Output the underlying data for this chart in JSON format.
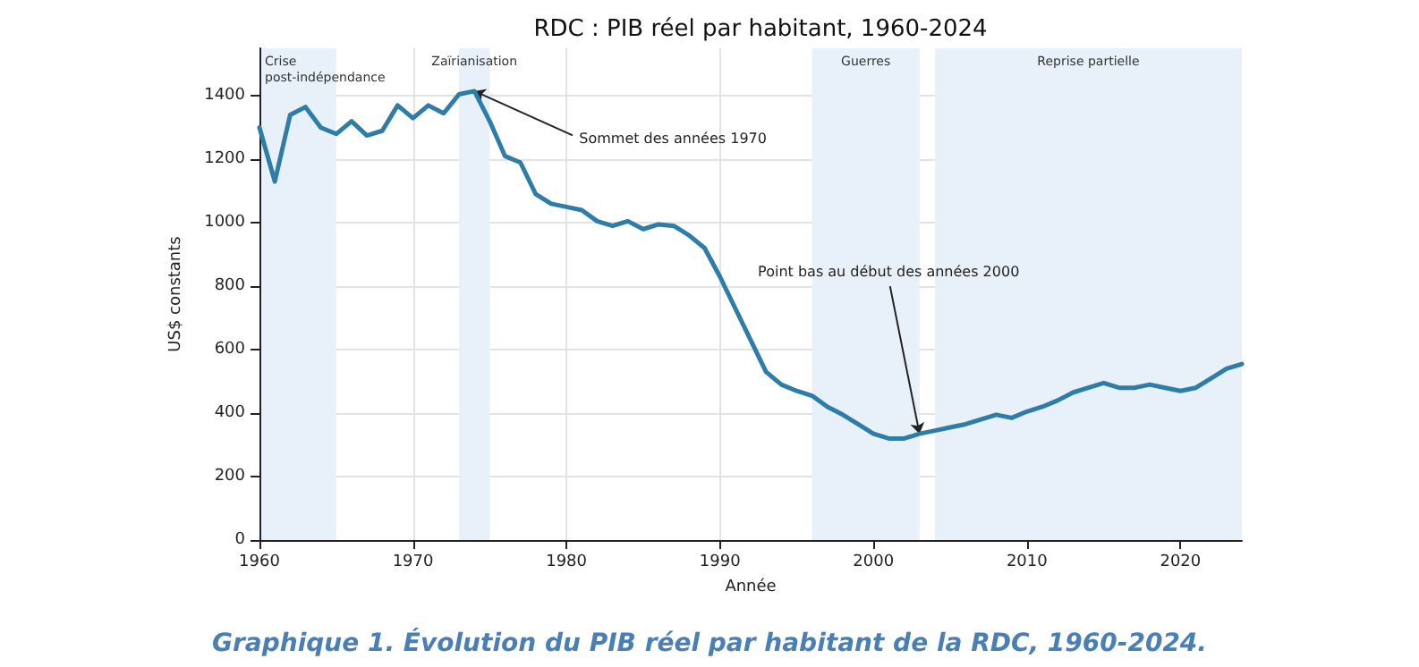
{
  "chart_data": {
    "type": "line",
    "title": "RDC : PIB réel par habitant, 1960-2024",
    "xlabel": "Année",
    "ylabel": "US$ constants",
    "x": [
      1960,
      1961,
      1962,
      1963,
      1964,
      1965,
      1966,
      1967,
      1968,
      1969,
      1970,
      1971,
      1972,
      1973,
      1974,
      1975,
      1976,
      1977,
      1978,
      1979,
      1980,
      1981,
      1982,
      1983,
      1984,
      1985,
      1986,
      1987,
      1988,
      1989,
      1990,
      1991,
      1992,
      1993,
      1994,
      1995,
      1996,
      1997,
      1998,
      1999,
      2000,
      2001,
      2002,
      2003,
      2004,
      2005,
      2006,
      2007,
      2008,
      2009,
      2010,
      2011,
      2012,
      2013,
      2014,
      2015,
      2016,
      2017,
      2018,
      2019,
      2020,
      2021,
      2022,
      2023,
      2024
    ],
    "series": [
      {
        "color": "#2e7ca8",
        "values": [
          1300,
          1130,
          1340,
          1365,
          1300,
          1280,
          1320,
          1275,
          1290,
          1370,
          1330,
          1370,
          1345,
          1405,
          1415,
          1320,
          1210,
          1190,
          1090,
          1060,
          1050,
          1040,
          1005,
          990,
          1005,
          980,
          995,
          990,
          960,
          920,
          830,
          730,
          630,
          530,
          490,
          470,
          455,
          420,
          395,
          365,
          335,
          320,
          320,
          335,
          345,
          355,
          365,
          380,
          395,
          385,
          405,
          420,
          440,
          465,
          480,
          495,
          480,
          480,
          490,
          480,
          470,
          480,
          510,
          540,
          555
        ]
      }
    ],
    "xlim": [
      1960,
      2024
    ],
    "ylim": [
      0,
      1550
    ],
    "xticks": [
      1960,
      1970,
      1980,
      1990,
      2000,
      2010,
      2020
    ],
    "yticks": [
      0,
      200,
      400,
      600,
      800,
      1000,
      1200,
      1400
    ],
    "grid": true,
    "marker": "none",
    "line_style": "solid",
    "bands": [
      {
        "axis": "x",
        "from": 1960,
        "to": 1965,
        "label": "Crise post-indépendance",
        "color": "#e8f1f9"
      },
      {
        "axis": "x",
        "from": 1973,
        "to": 1975,
        "label": "Zaïrianisation",
        "color": "#e8f1f9"
      },
      {
        "axis": "x",
        "from": 1996,
        "to": 2003,
        "label": "Guerres",
        "color": "#e8f1f9"
      },
      {
        "axis": "x",
        "from": 2004,
        "to": 2024,
        "label": "Reprise partielle",
        "color": "#e8f1f9"
      }
    ],
    "annotations": [
      {
        "text": "Sommet des années 1970",
        "x": 1974,
        "y": 1415
      },
      {
        "text": "Point bas au début des années 2000",
        "x": 2003,
        "y": 335
      },
      "Graphique 1. Évolution du PIB réel par habitant de la RDC, 1960-2024."
    ]
  }
}
